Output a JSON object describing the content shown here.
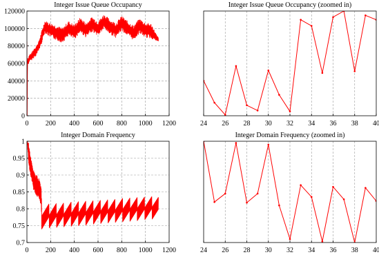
{
  "chart_data": [
    {
      "type": "line",
      "title": "Integer Issue Queue Occupancy",
      "xlabel": "",
      "ylabel": "",
      "xlim": [
        0,
        1200
      ],
      "ylim": [
        0,
        120000
      ],
      "x_ticks": [
        "0",
        "200",
        "400",
        "600",
        "800",
        "1000",
        "1200"
      ],
      "y_ticks": [
        "0",
        "20000",
        "40000",
        "60000",
        "80000",
        "100000",
        "120000"
      ],
      "grid": true,
      "color": "#ff0000",
      "style": "dense-oscillation",
      "series": [
        {
          "x": [
            0,
            2,
            5,
            10,
            20,
            40,
            60,
            80,
            100,
            120,
            150,
            200,
            250,
            300,
            350,
            400,
            450,
            500,
            550,
            600,
            650,
            700,
            750,
            800,
            850,
            900,
            950,
            1000,
            1050,
            1100
          ],
          "y": [
            85000,
            0,
            65000,
            62000,
            66000,
            68000,
            72000,
            75000,
            80000,
            88000,
            102000,
            98000,
            95000,
            92000,
            100000,
            96000,
            104000,
            98000,
            105000,
            100000,
            108000,
            102000,
            98000,
            106000,
            100000,
            95000,
            103000,
            98000,
            97000,
            88000
          ],
          "band": [
            12000,
            3000,
            6000,
            6000,
            6000,
            6000,
            8000,
            8000,
            8000,
            10000,
            10000,
            12000,
            12000,
            12000,
            12000,
            12000,
            12000,
            12000,
            12000,
            12000,
            12000,
            12000,
            12000,
            12000,
            12000,
            12000,
            12000,
            12000,
            12000,
            4000
          ]
        }
      ]
    },
    {
      "type": "line",
      "title": "Integer Issue Queue Occupancy (zoomed in)",
      "xlabel": "",
      "ylabel": "",
      "xlim": [
        24,
        40
      ],
      "ylim": [
        0,
        120000
      ],
      "x_ticks": [
        "24",
        "26",
        "28",
        "30",
        "32",
        "34",
        "36",
        "38",
        "40"
      ],
      "grid": "vertical-dashed",
      "color": "#ff0000",
      "series": [
        {
          "x": [
            24,
            25,
            26,
            27,
            28,
            29,
            30,
            31,
            32,
            33,
            34,
            35,
            36,
            37,
            38,
            39,
            40
          ],
          "y": [
            40000,
            15000,
            1000,
            57000,
            12000,
            6000,
            52000,
            24000,
            5000,
            110000,
            103000,
            49000,
            113000,
            120000,
            51000,
            115000,
            110000
          ]
        }
      ]
    },
    {
      "type": "line",
      "title": "Integer Domain Frequency",
      "xlabel": "",
      "ylabel": "",
      "xlim": [
        0,
        1200
      ],
      "ylim": [
        0.7,
        1.0
      ],
      "x_ticks": [
        "0",
        "200",
        "400",
        "600",
        "800",
        "1000",
        "1200"
      ],
      "y_ticks": [
        "0.7",
        "0.75",
        "0.8",
        "0.85",
        "0.9",
        "0.95",
        "1"
      ],
      "grid": true,
      "color": "#ff0000",
      "style": "sawtooth",
      "series": [
        {
          "x": [
            0,
            20,
            40,
            60,
            80,
            100,
            120,
            125,
            1100
          ],
          "y": [
            1.0,
            0.95,
            0.91,
            0.88,
            0.87,
            0.86,
            0.84,
            0.78,
            0.8
          ],
          "sawtooth": {
            "x_start": 125,
            "x_end": 1110,
            "period": 62,
            "low_start": 0.74,
            "low_end": 0.77,
            "high_start": 0.81,
            "high_end": 0.835
          }
        }
      ]
    },
    {
      "type": "line",
      "title": "Integer Domain Frequency (zoomed in)",
      "xlabel": "",
      "ylabel": "",
      "xlim": [
        24,
        40
      ],
      "ylim": [
        0.7,
        1.0
      ],
      "x_ticks": [
        "24",
        "26",
        "28",
        "30",
        "32",
        "34",
        "36",
        "38",
        "40"
      ],
      "grid": "vertical-dashed",
      "color": "#ff0000",
      "series": [
        {
          "x": [
            24,
            25,
            26,
            27,
            28,
            29,
            30,
            31,
            32,
            33,
            34,
            35,
            36,
            37,
            38,
            39,
            40
          ],
          "y": [
            1.0,
            0.82,
            0.845,
            0.995,
            0.818,
            0.845,
            0.99,
            0.81,
            0.71,
            0.87,
            0.835,
            0.703,
            0.865,
            0.828,
            0.7,
            0.862,
            0.823
          ]
        }
      ]
    }
  ]
}
